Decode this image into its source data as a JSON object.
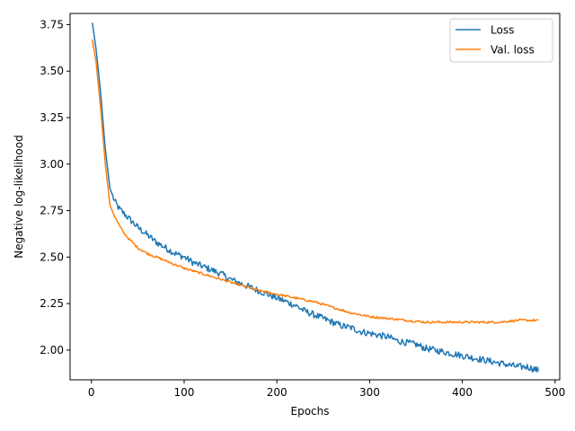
{
  "chart_data": {
    "type": "line",
    "title": "",
    "xlabel": "Epochs",
    "ylabel": "Negative log-likelihood",
    "xlim": [
      -23,
      505
    ],
    "ylim": [
      1.84,
      3.81
    ],
    "xticks": [
      0,
      100,
      200,
      300,
      400,
      500
    ],
    "yticks": [
      2.0,
      2.25,
      2.5,
      2.75,
      3.0,
      3.25,
      3.5,
      3.75
    ],
    "xtick_labels": [
      "0",
      "100",
      "200",
      "300",
      "400",
      "500"
    ],
    "ytick_labels": [
      "2.00",
      "2.25",
      "2.50",
      "2.75",
      "3.00",
      "3.25",
      "3.50",
      "3.75"
    ],
    "grid": false,
    "legend": {
      "location": "upper right",
      "entries": [
        "Loss",
        "Val. loss"
      ]
    },
    "series": [
      {
        "name": "Loss",
        "color": "#1f77b4",
        "noise": 0.018,
        "x": [
          1,
          5,
          10,
          15,
          20,
          25,
          30,
          40,
          50,
          60,
          70,
          80,
          90,
          100,
          110,
          120,
          130,
          140,
          150,
          160,
          170,
          180,
          190,
          200,
          210,
          220,
          230,
          240,
          250,
          260,
          270,
          280,
          290,
          300,
          310,
          320,
          330,
          340,
          350,
          360,
          370,
          380,
          390,
          400,
          410,
          420,
          430,
          440,
          450,
          460,
          470,
          482
        ],
        "y": [
          3.76,
          3.62,
          3.38,
          3.08,
          2.87,
          2.8,
          2.76,
          2.71,
          2.66,
          2.62,
          2.58,
          2.55,
          2.52,
          2.5,
          2.47,
          2.45,
          2.43,
          2.41,
          2.38,
          2.36,
          2.34,
          2.32,
          2.3,
          2.28,
          2.26,
          2.24,
          2.21,
          2.19,
          2.17,
          2.15,
          2.13,
          2.12,
          2.1,
          2.09,
          2.08,
          2.07,
          2.05,
          2.04,
          2.03,
          2.01,
          2.0,
          1.99,
          1.98,
          1.97,
          1.96,
          1.95,
          1.94,
          1.93,
          1.92,
          1.91,
          1.91,
          1.89
        ]
      },
      {
        "name": "Val. loss",
        "color": "#ff7f0e",
        "noise": 0.006,
        "x": [
          1,
          5,
          10,
          15,
          20,
          25,
          30,
          35,
          40,
          50,
          60,
          70,
          80,
          90,
          100,
          120,
          140,
          160,
          180,
          200,
          220,
          240,
          260,
          280,
          300,
          320,
          340,
          360,
          380,
          400,
          420,
          440,
          460,
          482
        ],
        "y": [
          3.67,
          3.55,
          3.3,
          3.0,
          2.78,
          2.72,
          2.67,
          2.63,
          2.6,
          2.55,
          2.52,
          2.5,
          2.48,
          2.46,
          2.44,
          2.41,
          2.38,
          2.35,
          2.32,
          2.3,
          2.28,
          2.26,
          2.23,
          2.2,
          2.18,
          2.17,
          2.16,
          2.15,
          2.15,
          2.15,
          2.15,
          2.15,
          2.16,
          2.16
        ]
      }
    ]
  }
}
